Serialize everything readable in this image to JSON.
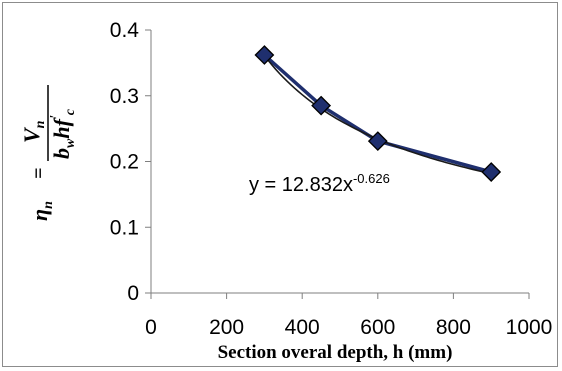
{
  "chart_data": {
    "type": "scatter",
    "xlabel": "Section overal depth, h (mm)",
    "ylabel": {
      "lhs": "η",
      "lhs_sub": "n",
      "eq": "=",
      "num_V": "V",
      "num_sub": "n",
      "den_b": "b",
      "den_sub": "w",
      "den_h": "h",
      "den_f": "f",
      "den_prime": "'",
      "den_c": "c"
    },
    "xlim": [
      0,
      1000
    ],
    "ylim": [
      0,
      0.4
    ],
    "xticks": [
      "0",
      "200",
      "400",
      "600",
      "800",
      "1000"
    ],
    "yticks": [
      "0",
      "0.1",
      "0.2",
      "0.3",
      "0.4"
    ],
    "grid": false,
    "series": [
      {
        "x": [
          300,
          450,
          600,
          900
        ],
        "y": [
          0.362,
          0.285,
          0.231,
          0.184
        ],
        "marker": "diamond",
        "color": "#1f2f6e"
      }
    ],
    "trendline": {
      "label_main": "y = 12.832x",
      "label_exp": "-0.626",
      "a": 12.832,
      "b": -0.626,
      "color": "#1a1a1a"
    }
  }
}
